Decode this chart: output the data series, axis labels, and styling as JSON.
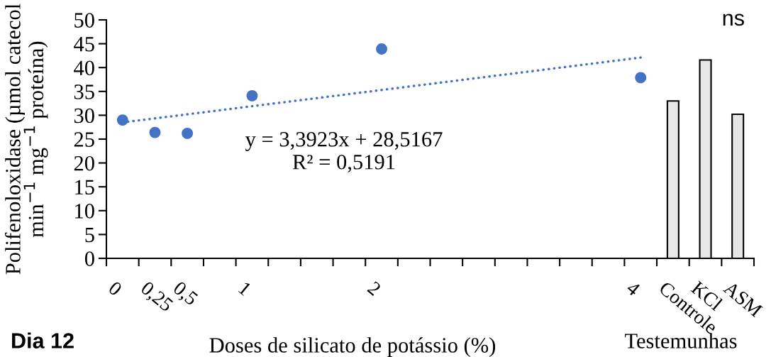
{
  "chart_data": {
    "type": "scatter",
    "ylabel": "Polifenoloxidase (µmol catecol\nmin$^{−1}$ mg$^{−1}$ proteína)",
    "xlabel": "Doses de silicato de potássio (%)",
    "categories": [
      "0",
      "0,25",
      "0,5",
      null,
      "1",
      null,
      null,
      null,
      "2",
      null,
      null,
      null,
      null,
      null,
      null,
      null,
      "4",
      "Controle",
      "KCl",
      "ASM"
    ],
    "series": [
      {
        "color": "#4472c4",
        "marker": "circle",
        "values": [
          29.0,
          26.4,
          26.2,
          null,
          34.1,
          null,
          null,
          null,
          43.9,
          null,
          null,
          null,
          null,
          null,
          null,
          null,
          37.9,
          null,
          null,
          null
        ]
      },
      {
        "type": "line",
        "color": "#4472c4",
        "line_style": "dotted",
        "values": [
          28.5,
          null,
          null,
          null,
          null,
          null,
          null,
          null,
          null,
          null,
          null,
          null,
          null,
          null,
          null,
          null,
          42.1,
          null,
          null,
          null
        ]
      },
      {
        "type": "bar",
        "color": "#e7e6e6",
        "values": [
          null,
          null,
          null,
          null,
          null,
          null,
          null,
          null,
          null,
          null,
          null,
          null,
          null,
          null,
          null,
          null,
          null,
          33.0,
          41.6,
          30.2
        ]
      }
    ],
    "ylim": [
      0,
      50
    ],
    "yticks": [
      0,
      5,
      10,
      15,
      20,
      25,
      30,
      35,
      40,
      45,
      50
    ],
    "grid": false,
    "legend": false,
    "annotations": [
      "y = 3,3923x + 28,5167\nR² = 0,5191",
      "ns",
      "Dia 12",
      "Testemunhas"
    ]
  }
}
